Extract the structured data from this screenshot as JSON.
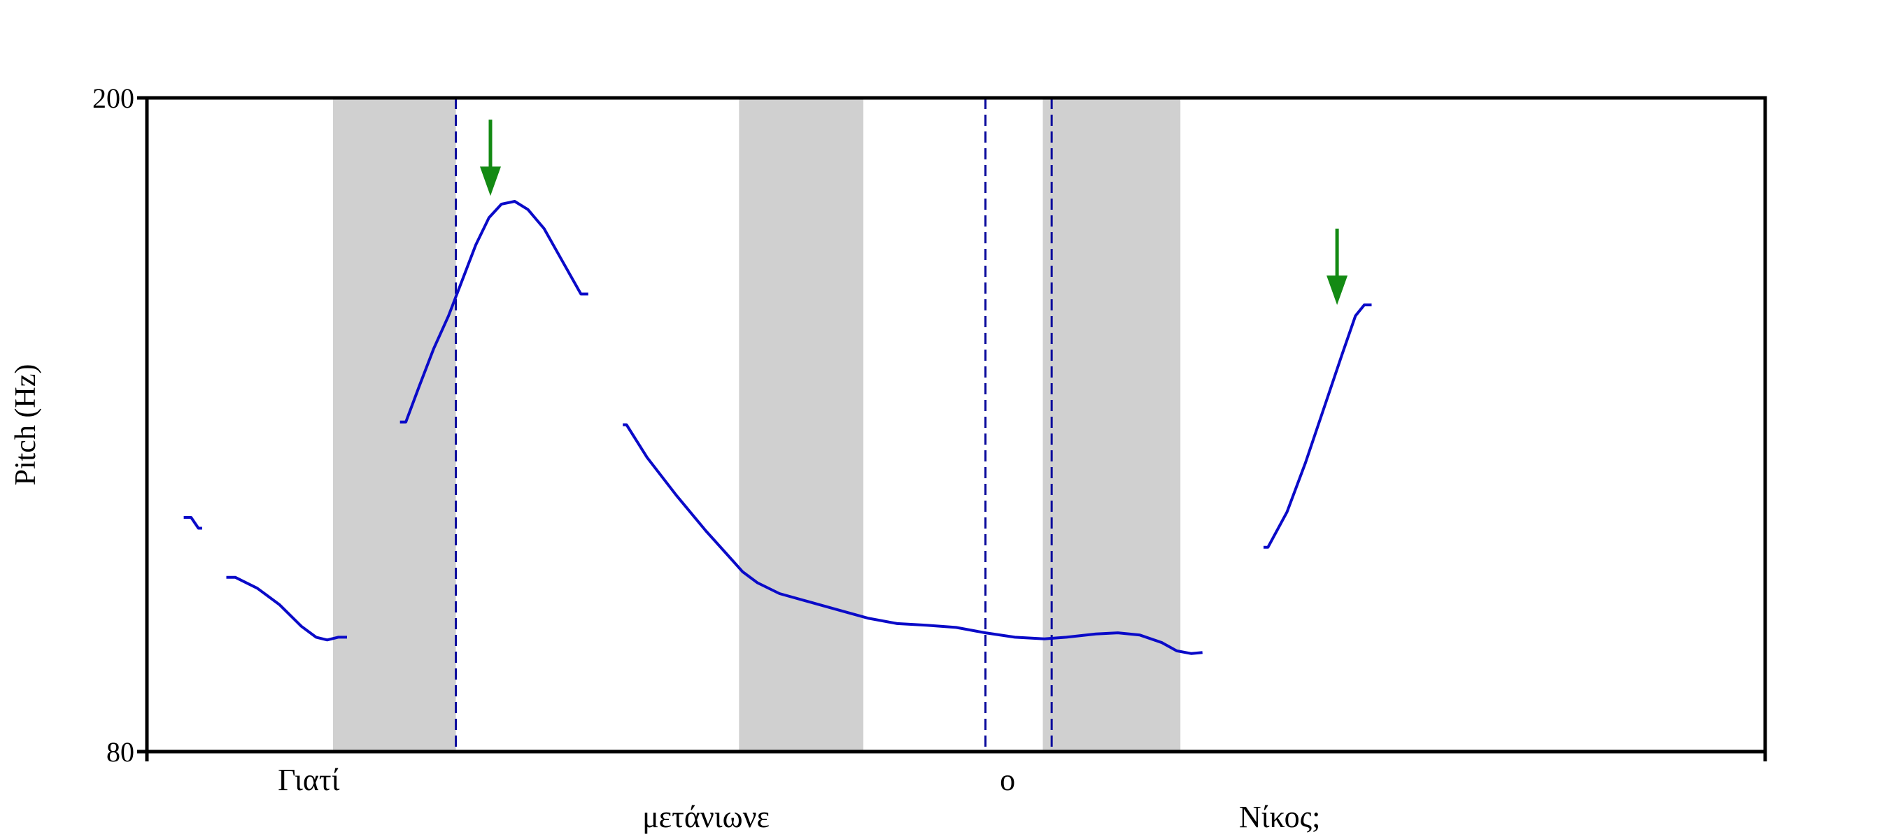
{
  "chart_data": {
    "type": "line",
    "title": "",
    "xlabel": "",
    "ylabel": "Pitch (Hz)",
    "xlim": [
      0,
      2.2
    ],
    "ylim": [
      80,
      200
    ],
    "yticks": [
      80,
      200
    ],
    "grid": false,
    "legend": "none",
    "colors": {
      "pitch": "#0a0ac8",
      "boundary": "#0a0a9c",
      "shade": "#d0d0d0",
      "arrow": "#138a13",
      "axis": "#000000"
    },
    "shaded_regions": [
      [
        0.253,
        0.42
      ],
      [
        0.805,
        0.974
      ],
      [
        1.218,
        1.405
      ]
    ],
    "boundaries": [
      0.42,
      1.14,
      1.23
    ],
    "word_labels": [
      {
        "text": "Γιατί",
        "x": 0.22,
        "row": 1
      },
      {
        "text": "μετάνιωνε",
        "x": 0.76,
        "row": 2
      },
      {
        "text": "ο",
        "x": 1.17,
        "row": 1
      },
      {
        "text": "Νίκος;",
        "x": 1.54,
        "row": 2
      }
    ],
    "arrows": [
      {
        "x": 0.467,
        "y_from": 196,
        "y_to": 182
      },
      {
        "x": 1.618,
        "y_from": 176,
        "y_to": 162
      }
    ],
    "series": [
      {
        "points": [
          [
            0.05,
            123
          ],
          [
            0.06,
            123
          ],
          [
            0.07,
            121
          ],
          [
            0.075,
            121
          ]
        ]
      },
      {
        "points": [
          [
            0.108,
            112
          ],
          [
            0.12,
            112
          ],
          [
            0.15,
            110
          ],
          [
            0.18,
            107
          ],
          [
            0.21,
            103
          ],
          [
            0.23,
            101
          ],
          [
            0.245,
            100.5
          ],
          [
            0.26,
            101
          ],
          [
            0.272,
            101
          ]
        ]
      },
      {
        "points": [
          [
            0.344,
            140.5
          ],
          [
            0.352,
            140.5
          ],
          [
            0.37,
            147
          ],
          [
            0.39,
            154
          ],
          [
            0.41,
            160
          ],
          [
            0.43,
            167
          ],
          [
            0.447,
            173
          ],
          [
            0.465,
            178
          ],
          [
            0.482,
            180.5
          ],
          [
            0.5,
            181
          ],
          [
            0.518,
            179.5
          ],
          [
            0.54,
            176
          ],
          [
            0.565,
            170
          ],
          [
            0.59,
            164
          ],
          [
            0.6,
            164
          ]
        ]
      },
      {
        "points": [
          [
            0.647,
            140
          ],
          [
            0.652,
            140
          ],
          [
            0.68,
            134
          ],
          [
            0.72,
            127
          ],
          [
            0.76,
            120.5
          ],
          [
            0.79,
            116
          ],
          [
            0.81,
            113
          ],
          [
            0.83,
            111
          ],
          [
            0.86,
            109
          ],
          [
            0.9,
            107.5
          ],
          [
            0.94,
            106
          ],
          [
            0.98,
            104.5
          ],
          [
            1.02,
            103.5
          ],
          [
            1.06,
            103.2
          ],
          [
            1.1,
            102.8
          ],
          [
            1.14,
            101.8
          ],
          [
            1.18,
            101
          ],
          [
            1.22,
            100.7
          ],
          [
            1.25,
            101
          ],
          [
            1.29,
            101.6
          ],
          [
            1.32,
            101.8
          ],
          [
            1.35,
            101.4
          ],
          [
            1.38,
            100
          ],
          [
            1.4,
            98.5
          ],
          [
            1.42,
            98
          ],
          [
            1.435,
            98.2
          ]
        ]
      },
      {
        "points": [
          [
            1.518,
            117.5
          ],
          [
            1.524,
            117.5
          ],
          [
            1.55,
            124
          ],
          [
            1.575,
            133
          ],
          [
            1.6,
            143
          ],
          [
            1.625,
            153
          ],
          [
            1.643,
            160
          ],
          [
            1.655,
            162
          ],
          [
            1.665,
            162
          ]
        ]
      }
    ]
  }
}
